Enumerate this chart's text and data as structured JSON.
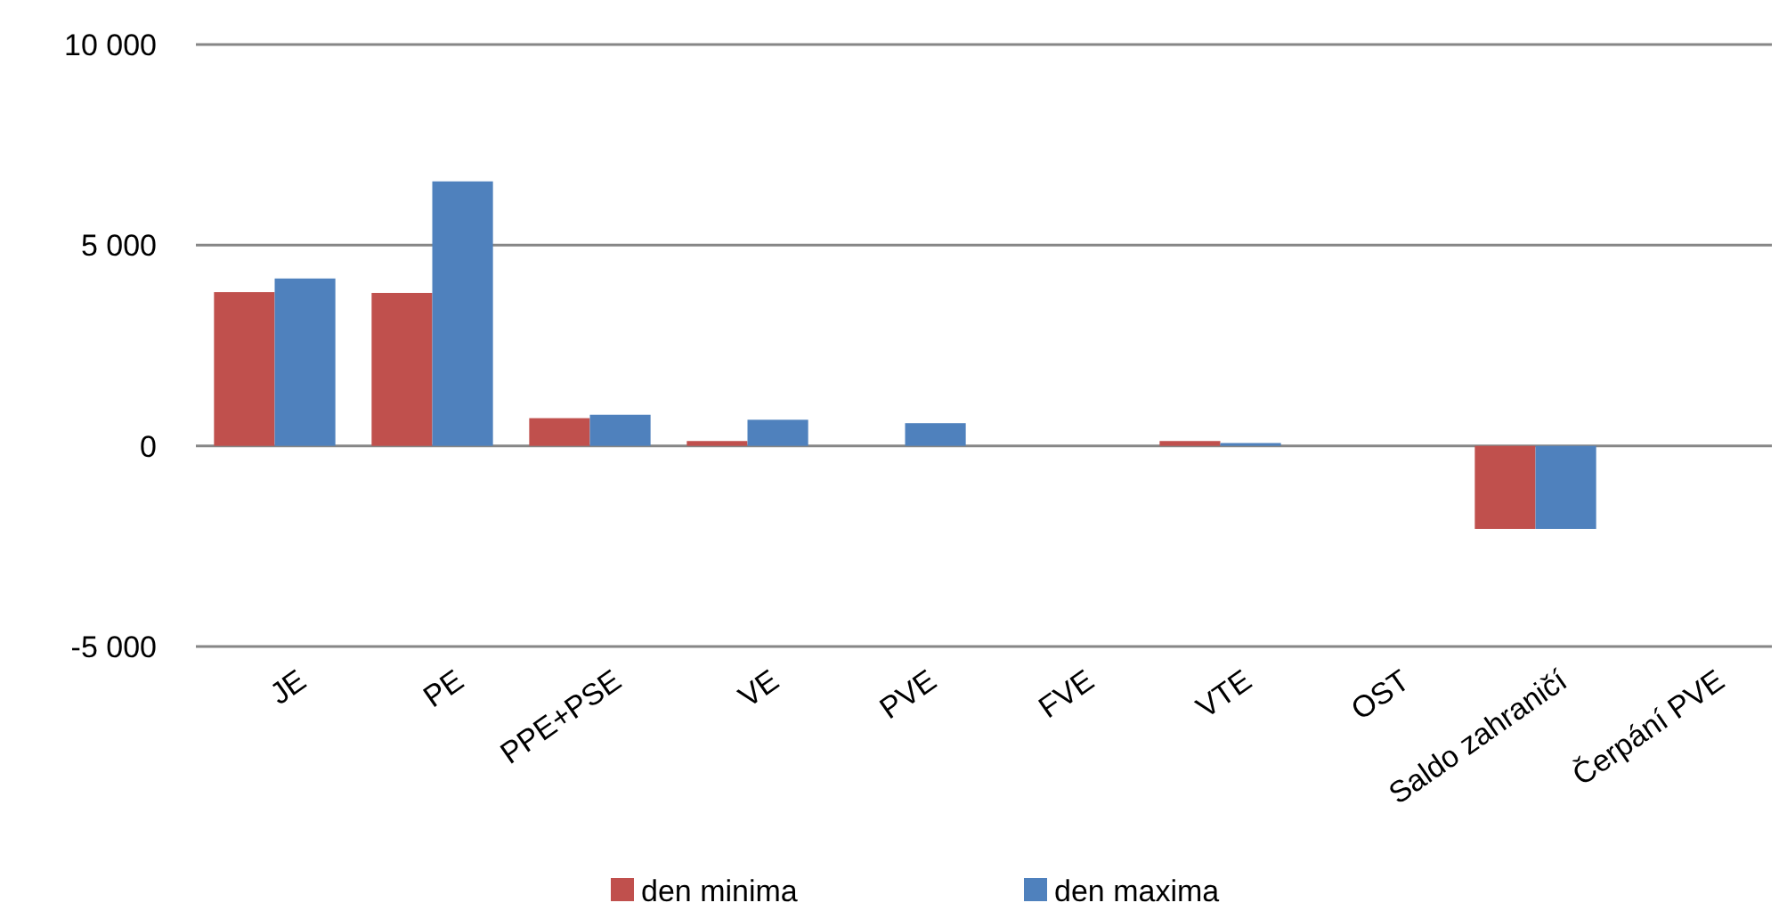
{
  "chart_data": {
    "type": "bar",
    "categories": [
      "JE",
      "PE",
      "PPE+PSE",
      "VE",
      "PVE",
      "FVE",
      "VTE",
      "OST",
      "Saldo zahraničí",
      "Čerpání PVE"
    ],
    "series": [
      {
        "name": "den minima",
        "color": "#c0504d",
        "values": [
          3830,
          3810,
          690,
          120,
          0,
          0,
          120,
          0,
          -2070,
          0
        ]
      },
      {
        "name": "den maxima",
        "color": "#4f81bd",
        "values": [
          4170,
          6590,
          775,
          650,
          565,
          0,
          70,
          0,
          -2070,
          0
        ]
      }
    ],
    "ylim": [
      -5000,
      10000
    ],
    "yticks": [
      {
        "value": -5000,
        "label": "-5 000"
      },
      0,
      {
        "value": 5000,
        "label": "5 000"
      },
      {
        "value": 10000,
        "label": "10 000"
      }
    ],
    "grid": "y",
    "legend": "bottom"
  }
}
